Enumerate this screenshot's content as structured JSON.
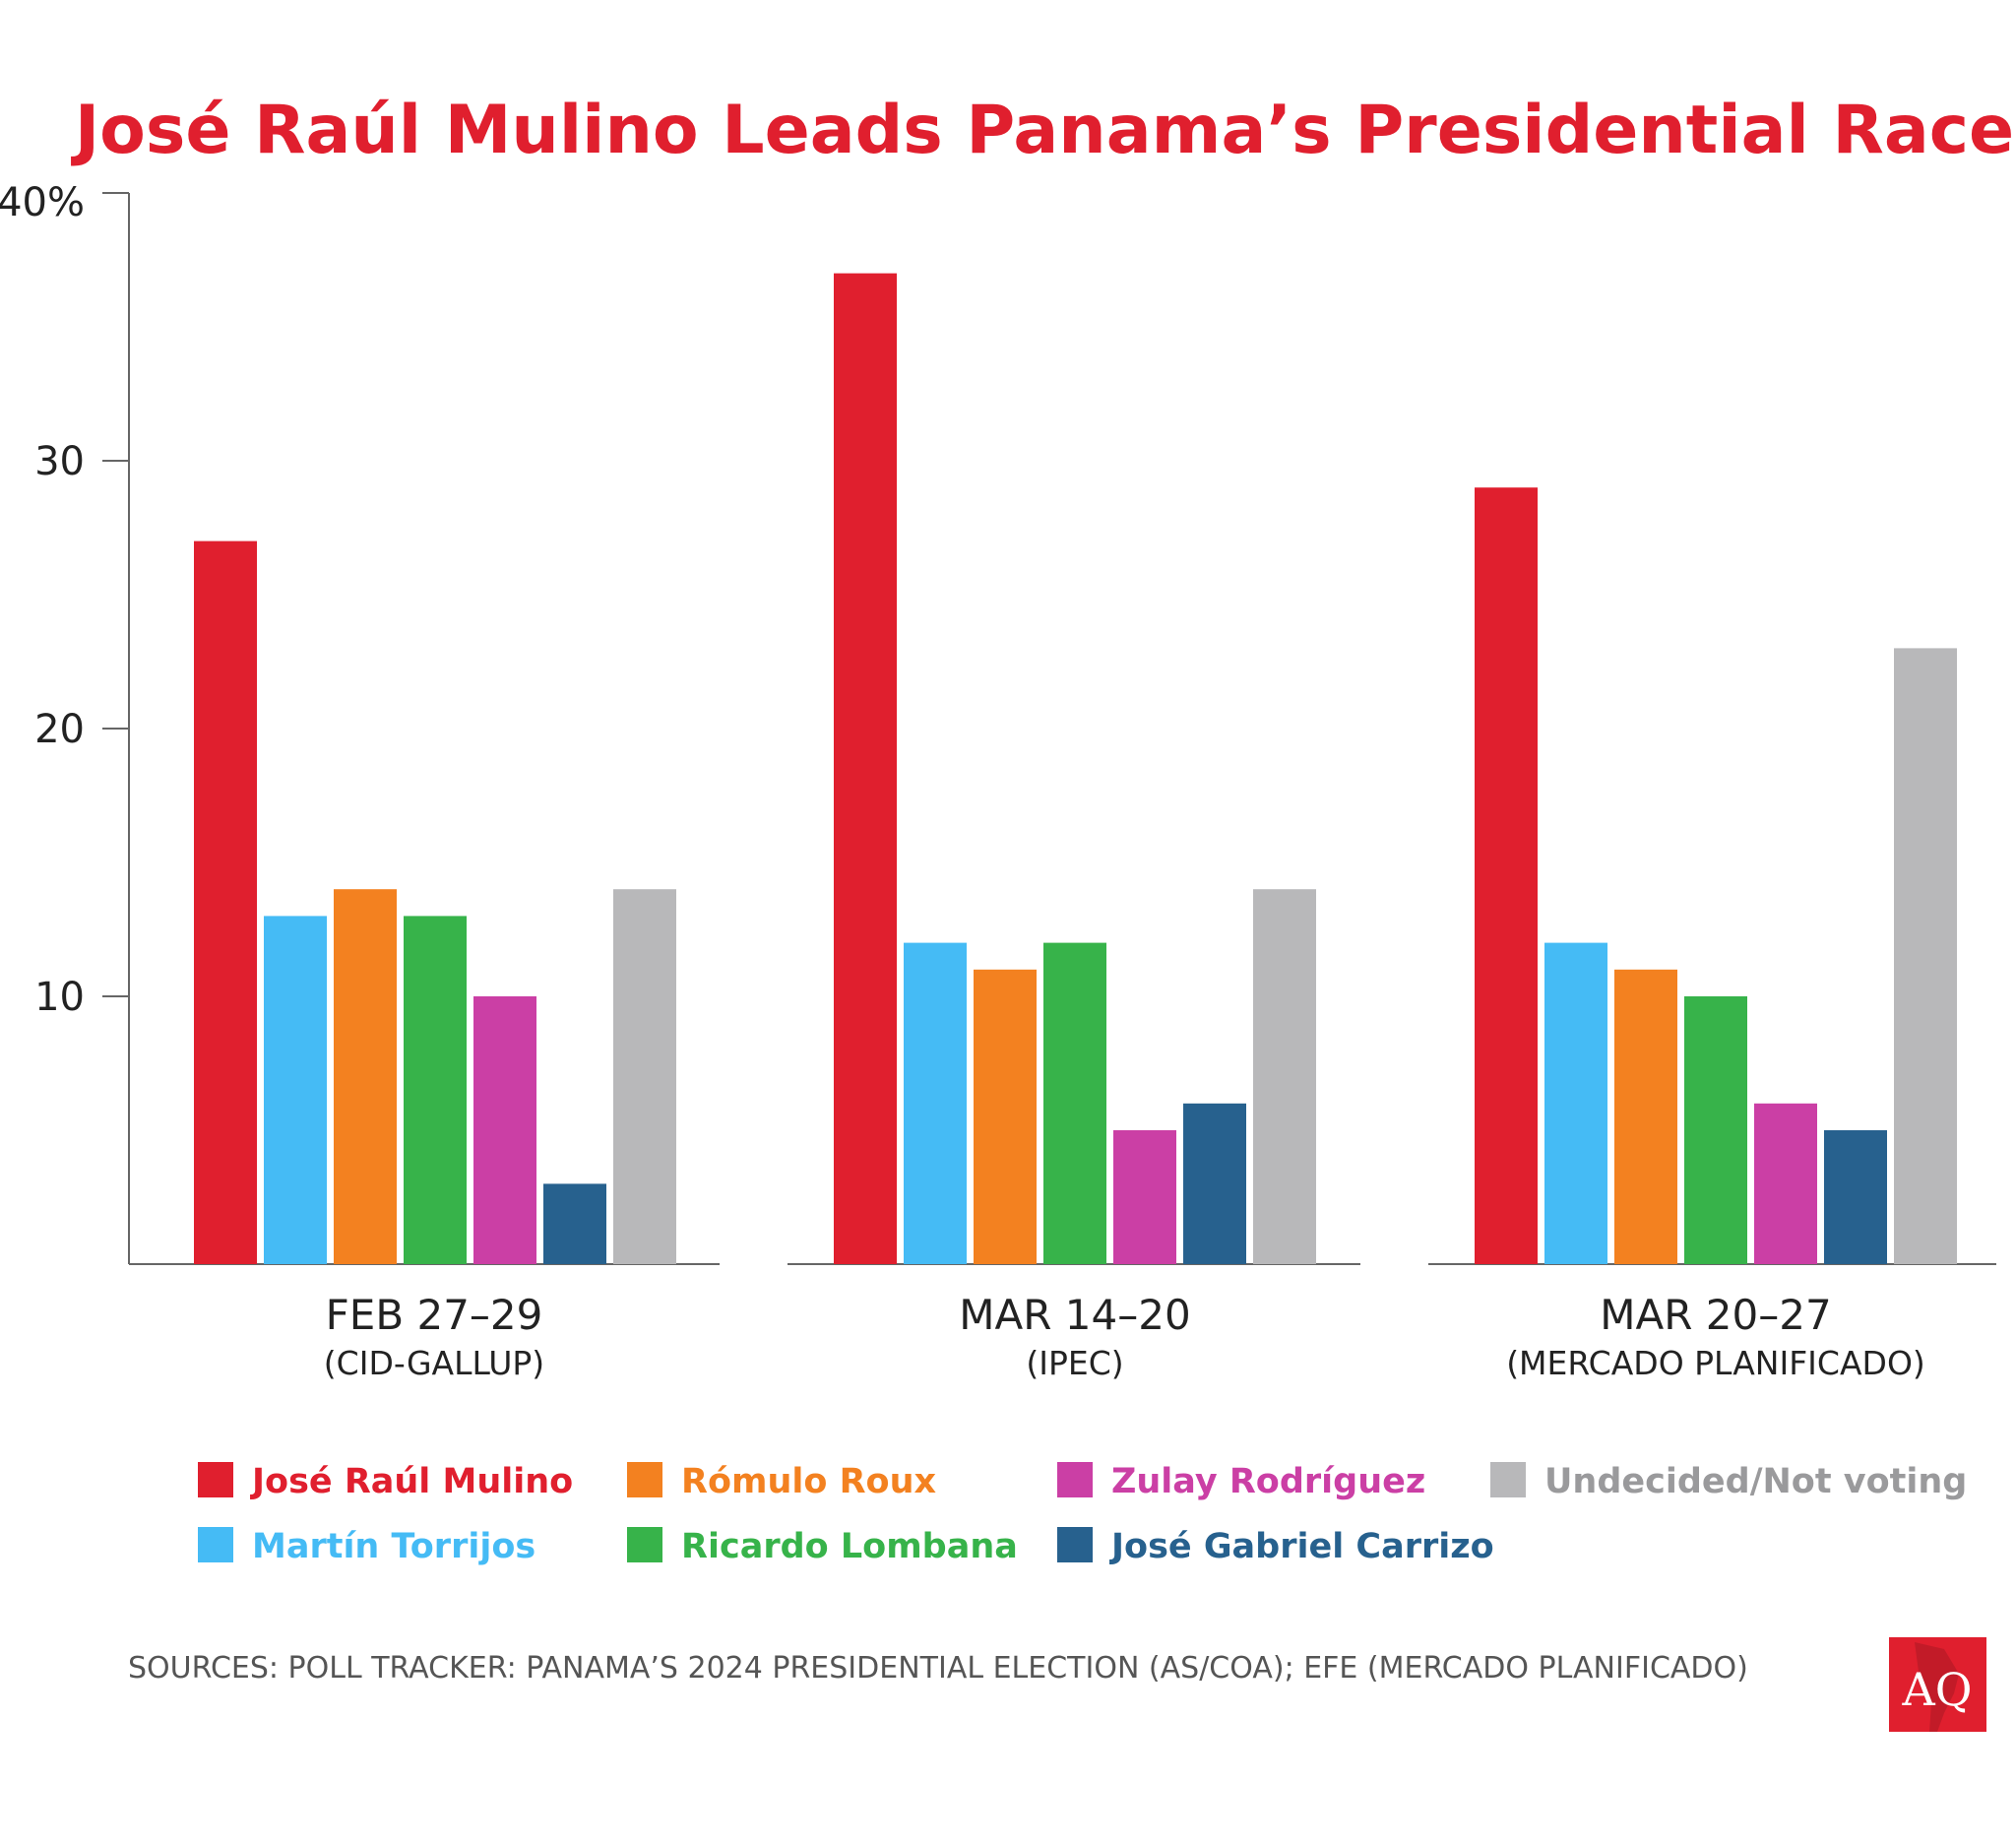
{
  "chart_data": {
    "type": "bar",
    "title": "José Raúl Mulino Leads Panama’s Presidential Race",
    "categories": [
      {
        "label": "FEB 27–29",
        "sublabel": "(CID-GALLUP)"
      },
      {
        "label": "MAR 14–20",
        "sublabel": "(IPEC)"
      },
      {
        "label": "MAR 20–27",
        "sublabel": "(MERCADO PLANIFICADO)"
      }
    ],
    "series": [
      {
        "name": "José Raúl Mulino",
        "color": "#e01f2e",
        "values": [
          27,
          37,
          29
        ]
      },
      {
        "name": "Martín Torrijos",
        "color": "#45bbf5",
        "values": [
          13,
          12,
          12
        ]
      },
      {
        "name": "Rómulo Roux",
        "color": "#f38120",
        "values": [
          14,
          11,
          11
        ]
      },
      {
        "name": "Ricardo Lombana",
        "color": "#37b34a",
        "values": [
          13,
          12,
          10
        ]
      },
      {
        "name": "Zulay Rodríguez",
        "color": "#cb3fa5",
        "values": [
          10,
          5,
          6
        ]
      },
      {
        "name": "José Gabriel Carrizo",
        "color": "#27618e",
        "values": [
          3,
          6,
          5
        ]
      },
      {
        "name": "Undecided/Not voting",
        "color": "#b8b8ba",
        "text_color": "#9a9a9c",
        "values": [
          14,
          14,
          23
        ]
      }
    ],
    "ylim": [
      0,
      40
    ],
    "yticks": [
      {
        "value": 10,
        "label": "10"
      },
      {
        "value": 20,
        "label": "20"
      },
      {
        "value": 30,
        "label": "30"
      },
      {
        "value": 40,
        "label": "40%"
      }
    ],
    "grid": false,
    "legend_position": "bottom",
    "title_color": "#e01f2e"
  },
  "source": "SOURCES: POLL TRACKER: PANAMA’S 2024 PRESIDENTIAL ELECTION (AS/COA); EFE (MERCADO PLANIFICADO)",
  "logo": {
    "text": "AQ",
    "color": "#e01f2e"
  }
}
